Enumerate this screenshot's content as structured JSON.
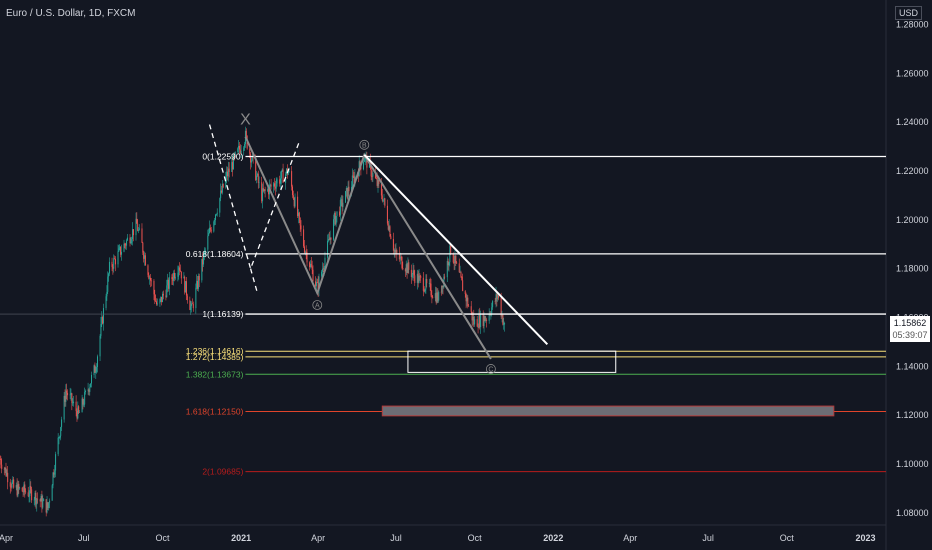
{
  "header": {
    "symbol": "Euro / U.S. Dollar, 1D, FXCM",
    "currency": "USD"
  },
  "last_price": {
    "value": "1.15862",
    "countdown": "05:39:07"
  },
  "colors": {
    "background": "#131722",
    "bull": "#26a69a",
    "bear": "#ef5350",
    "white": "#ffffff",
    "yellow": "#f9e07a",
    "green_level": "#4caf50",
    "red_level": "#e0442b",
    "dark_red": "#b71c1c",
    "grey_wave": "#8a8a8a",
    "axis_text": "#d1d4dc"
  },
  "chart_data": {
    "type": "candlestick",
    "title": "Euro / U.S. Dollar, 1D, FXCM",
    "y_axis": {
      "range": [
        1.075,
        1.29
      ],
      "ticks": [
        "1.28000",
        "1.26000",
        "1.24000",
        "1.22000",
        "1.20000",
        "1.18000",
        "1.16000",
        "1.14000",
        "1.12000",
        "1.10000",
        "1.08000"
      ]
    },
    "x_axis": {
      "range": [
        "2020-03-25",
        "2023-01-25"
      ],
      "ticks": [
        {
          "label": "Apr",
          "date": "2020-04-01"
        },
        {
          "label": "Jul",
          "date": "2020-07-01"
        },
        {
          "label": "Oct",
          "date": "2020-10-01"
        },
        {
          "label": "2021",
          "date": "2021-01-01"
        },
        {
          "label": "Apr",
          "date": "2021-04-01"
        },
        {
          "label": "Jul",
          "date": "2021-07-01"
        },
        {
          "label": "Oct",
          "date": "2021-10-01"
        },
        {
          "label": "2022",
          "date": "2022-01-01"
        },
        {
          "label": "Apr",
          "date": "2022-04-01"
        },
        {
          "label": "Jul",
          "date": "2022-07-01"
        },
        {
          "label": "Oct",
          "date": "2022-10-01"
        },
        {
          "label": "2023",
          "date": "2023-01-01"
        }
      ]
    },
    "price_path": [
      {
        "date": "2020-03-25",
        "price": 1.102
      },
      {
        "date": "2020-04-10",
        "price": 1.09
      },
      {
        "date": "2020-05-01",
        "price": 1.088
      },
      {
        "date": "2020-05-20",
        "price": 1.082
      },
      {
        "date": "2020-06-10",
        "price": 1.13
      },
      {
        "date": "2020-06-25",
        "price": 1.12
      },
      {
        "date": "2020-07-15",
        "price": 1.14
      },
      {
        "date": "2020-07-31",
        "price": 1.18
      },
      {
        "date": "2020-08-18",
        "price": 1.19
      },
      {
        "date": "2020-09-01",
        "price": 1.198
      },
      {
        "date": "2020-09-25",
        "price": 1.164
      },
      {
        "date": "2020-10-20",
        "price": 1.182
      },
      {
        "date": "2020-11-04",
        "price": 1.163
      },
      {
        "date": "2020-11-25",
        "price": 1.195
      },
      {
        "date": "2020-12-15",
        "price": 1.218
      },
      {
        "date": "2021-01-06",
        "price": 1.234
      },
      {
        "date": "2021-01-25",
        "price": 1.21
      },
      {
        "date": "2021-02-25",
        "price": 1.22
      },
      {
        "date": "2021-03-15",
        "price": 1.19
      },
      {
        "date": "2021-03-31",
        "price": 1.172
      },
      {
        "date": "2021-04-20",
        "price": 1.2
      },
      {
        "date": "2021-05-25",
        "price": 1.226
      },
      {
        "date": "2021-06-15",
        "price": 1.21
      },
      {
        "date": "2021-06-30",
        "price": 1.186
      },
      {
        "date": "2021-07-20",
        "price": 1.178
      },
      {
        "date": "2021-08-20",
        "price": 1.168
      },
      {
        "date": "2021-09-03",
        "price": 1.188
      },
      {
        "date": "2021-09-30",
        "price": 1.158
      },
      {
        "date": "2021-10-15",
        "price": 1.16
      },
      {
        "date": "2021-10-28",
        "price": 1.169
      },
      {
        "date": "2021-11-05",
        "price": 1.156
      }
    ],
    "fib_levels": [
      {
        "label": "0(1.22590)",
        "price": 1.2259,
        "color": "#ffffff"
      },
      {
        "label": "0.618(1.18604)",
        "price": 1.18604,
        "color": "#ffffff"
      },
      {
        "label": "1(1.16139)",
        "price": 1.16139,
        "color": "#ffffff"
      },
      {
        "label": "1.236(1.14616)",
        "price": 1.14616,
        "color": "#f9e07a"
      },
      {
        "label": "1.272(1.14385)",
        "price": 1.14385,
        "color": "#f9e07a"
      },
      {
        "label": "1.382(1.13673)",
        "price": 1.13673,
        "color": "#4caf50"
      },
      {
        "label": "1.618(1.12150)",
        "price": 1.1215,
        "color": "#e0442b"
      },
      {
        "label": "2(1.09685)",
        "price": 1.09685,
        "color": "#b71c1c"
      }
    ],
    "wave_labels": [
      "X",
      "A",
      "B",
      "C"
    ],
    "wave_points": {
      "X": {
        "date": "2021-01-06",
        "price": 1.234
      },
      "A": {
        "date": "2021-03-31",
        "price": 1.17
      },
      "B": {
        "date": "2021-05-25",
        "price": 1.2266
      },
      "C": {
        "date": "2021-10-20",
        "price": 1.143
      }
    },
    "trendline": {
      "from": {
        "date": "2021-05-25",
        "price": 1.2266
      },
      "to": {
        "date": "2021-12-25",
        "price": 1.149
      }
    },
    "target_box": {
      "from_date": "2021-07-15",
      "to_date": "2022-03-15",
      "price_top": 1.1462,
      "price_bottom": 1.1375
    },
    "red_zone": {
      "from_date": "2021-06-15",
      "to_date": "2022-11-25",
      "price_top": 1.1237,
      "price_bottom": 1.1197
    }
  }
}
